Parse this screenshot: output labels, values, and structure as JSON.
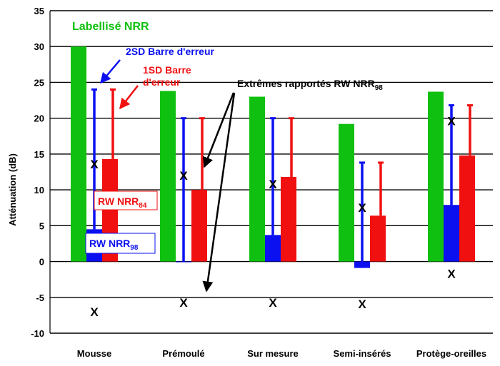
{
  "chart_data": {
    "type": "bar",
    "ylabel": "Atténuation (dB)",
    "ylim": [
      -10,
      35
    ],
    "yticks": [
      -10,
      -5,
      0,
      5,
      10,
      15,
      20,
      25,
      30,
      35
    ],
    "categories": [
      "Mousse",
      "Prémoulé",
      "Sur mesure",
      "Semi-insérés",
      "Protège-oreilles"
    ],
    "series": [
      {
        "name": "Labellisé NRR",
        "color": "#10c010",
        "values": [
          30,
          23.8,
          23.0,
          19.2,
          23.7
        ]
      },
      {
        "name": "RW NRR98",
        "color": "#0a10f0",
        "values": [
          4.5,
          0,
          3.7,
          -0.9,
          7.9
        ],
        "errorbar": [
          24,
          20,
          20,
          13.8,
          21.8
        ]
      },
      {
        "name": "RW NRR84",
        "color": "#f01010",
        "values": [
          14.3,
          10.0,
          11.8,
          6.4,
          14.8
        ],
        "errorbar": [
          24,
          20,
          20,
          13.8,
          21.8
        ]
      }
    ],
    "extremes_high": [
      13.6,
      12.0,
      10.8,
      7.5,
      19.6
    ],
    "extremes_low": [
      -7.0,
      -5.7,
      -5.7,
      -5.9,
      -1.7
    ],
    "extreme_marker": "X",
    "grid": true
  },
  "annotations": {
    "labellise": "Labellisé NRR",
    "sd2": "2SD Barre d'erreur",
    "sd1_line1": "1SD Barre",
    "sd1_line2": "d'erreur",
    "extremes_main": "Extrêmes rapportés RW NRR",
    "extremes_sub": "98",
    "rw84_main": "RW NRR",
    "rw84_sub": "84",
    "rw98_main": "RW NRR",
    "rw98_sub": "98"
  },
  "colors": {
    "green": "#10c010",
    "blue": "#0a10f0",
    "red": "#f01010",
    "grid": "#000000"
  }
}
